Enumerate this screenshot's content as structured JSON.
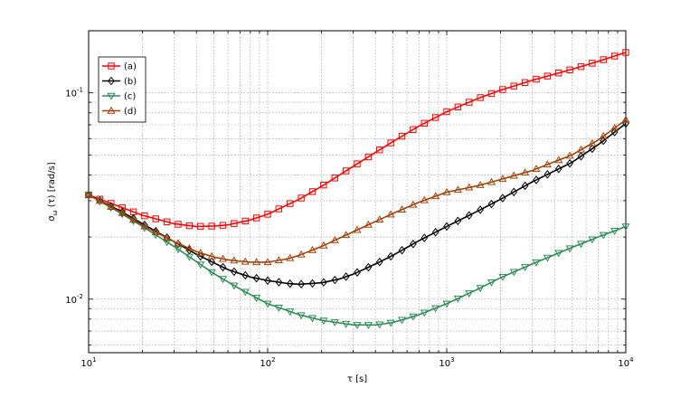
{
  "chart_data": {
    "type": "line",
    "x_scale": "log",
    "y_scale": "log",
    "xlim": [
      10,
      10000
    ],
    "ylim": [
      0.0055,
      0.2
    ],
    "xlabel": "τ [s]",
    "ylabel": "σ_ω (τ) [rad/s]",
    "x_ticks": [
      {
        "value": 10,
        "base": "10",
        "exp": "1"
      },
      {
        "value": 100,
        "base": "10",
        "exp": "2"
      },
      {
        "value": 1000,
        "base": "10",
        "exp": "3"
      },
      {
        "value": 10000,
        "base": "10",
        "exp": "4"
      }
    ],
    "y_ticks": [
      {
        "value": 0.01,
        "base": "10",
        "exp": "-2"
      },
      {
        "value": 0.1,
        "base": "10",
        "exp": "-1"
      }
    ],
    "grid": true,
    "legend_position": "top-left",
    "series": [
      {
        "name": "(a)",
        "color": "#ff0000",
        "marker": "square",
        "points": [
          [
            10,
            0.032
          ],
          [
            15,
            0.028
          ],
          [
            20,
            0.0255
          ],
          [
            30,
            0.0232
          ],
          [
            40,
            0.0225
          ],
          [
            50,
            0.0226
          ],
          [
            60,
            0.0229
          ],
          [
            80,
            0.0242
          ],
          [
            100,
            0.0258
          ],
          [
            150,
            0.0305
          ],
          [
            200,
            0.0352
          ],
          [
            300,
            0.044
          ],
          [
            500,
            0.058
          ],
          [
            700,
            0.069
          ],
          [
            1000,
            0.081
          ],
          [
            1500,
            0.094
          ],
          [
            2000,
            0.103
          ],
          [
            3000,
            0.115
          ],
          [
            5000,
            0.13
          ],
          [
            7000,
            0.142
          ],
          [
            10000,
            0.157
          ]
        ]
      },
      {
        "name": "(b)",
        "color": "#000000",
        "marker": "diamond",
        "points": [
          [
            10,
            0.032
          ],
          [
            15,
            0.0268
          ],
          [
            20,
            0.0232
          ],
          [
            30,
            0.019
          ],
          [
            40,
            0.0165
          ],
          [
            50,
            0.015
          ],
          [
            60,
            0.0139
          ],
          [
            80,
            0.0128
          ],
          [
            100,
            0.0123
          ],
          [
            130,
            0.0119
          ],
          [
            150,
            0.0118
          ],
          [
            200,
            0.012
          ],
          [
            250,
            0.0125
          ],
          [
            300,
            0.0132
          ],
          [
            400,
            0.0148
          ],
          [
            500,
            0.0163
          ],
          [
            700,
            0.0192
          ],
          [
            1000,
            0.0225
          ],
          [
            1500,
            0.0268
          ],
          [
            2000,
            0.0305
          ],
          [
            3000,
            0.037
          ],
          [
            5000,
            0.046
          ],
          [
            7000,
            0.056
          ],
          [
            10000,
            0.071
          ]
        ]
      },
      {
        "name": "(c)",
        "color": "#2e8b57",
        "marker": "triangle-down",
        "points": [
          [
            10,
            0.032
          ],
          [
            15,
            0.0262
          ],
          [
            20,
            0.0225
          ],
          [
            30,
            0.018
          ],
          [
            40,
            0.0152
          ],
          [
            50,
            0.0133
          ],
          [
            70,
            0.0112
          ],
          [
            100,
            0.0095
          ],
          [
            150,
            0.0084
          ],
          [
            200,
            0.0079
          ],
          [
            300,
            0.0075
          ],
          [
            400,
            0.0075
          ],
          [
            500,
            0.0077
          ],
          [
            700,
            0.0084
          ],
          [
            1000,
            0.0095
          ],
          [
            1500,
            0.0112
          ],
          [
            2000,
            0.0127
          ],
          [
            3000,
            0.0148
          ],
          [
            5000,
            0.0178
          ],
          [
            7000,
            0.02
          ],
          [
            10000,
            0.0225
          ]
        ]
      },
      {
        "name": "(d)",
        "color": "#a0420a",
        "marker": "triangle-up",
        "points": [
          [
            10,
            0.032
          ],
          [
            15,
            0.0265
          ],
          [
            20,
            0.0228
          ],
          [
            30,
            0.019
          ],
          [
            40,
            0.017
          ],
          [
            50,
            0.016
          ],
          [
            60,
            0.0155
          ],
          [
            80,
            0.0151
          ],
          [
            100,
            0.0151
          ],
          [
            130,
            0.0157
          ],
          [
            150,
            0.0163
          ],
          [
            200,
            0.018
          ],
          [
            300,
            0.0212
          ],
          [
            500,
            0.026
          ],
          [
            700,
            0.0295
          ],
          [
            1000,
            0.033
          ],
          [
            1500,
            0.0355
          ],
          [
            2000,
            0.038
          ],
          [
            3000,
            0.042
          ],
          [
            5000,
            0.05
          ],
          [
            7000,
            0.059
          ],
          [
            10000,
            0.074
          ]
        ]
      }
    ]
  }
}
